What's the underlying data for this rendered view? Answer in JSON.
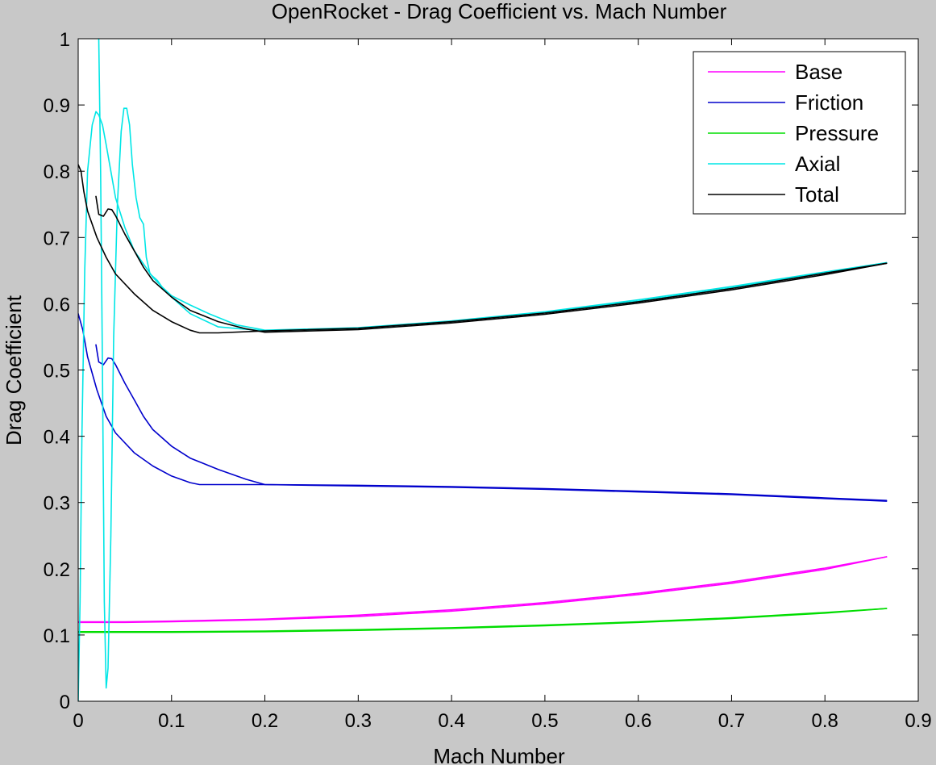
{
  "window": {
    "background": "#c8c8c8"
  },
  "chart_data": {
    "type": "line",
    "title": "OpenRocket - Drag Coefficient vs. Mach Number",
    "xlabel": "Mach Number",
    "ylabel": "Drag Coefficient",
    "xlim": [
      0,
      0.9
    ],
    "ylim": [
      0,
      1
    ],
    "xticks": [
      0,
      0.1,
      0.2,
      0.3,
      0.4,
      0.5,
      0.6,
      0.7,
      0.8,
      0.9
    ],
    "xtick_labels": [
      "0",
      "0.1",
      "0.2",
      "0.3",
      "0.4",
      "0.5",
      "0.6",
      "0.7",
      "0.8",
      "0.9"
    ],
    "yticks": [
      0,
      0.1,
      0.2,
      0.3,
      0.4,
      0.5,
      0.6,
      0.7,
      0.8,
      0.9,
      1
    ],
    "ytick_labels": [
      "0",
      "0.1",
      "0.2",
      "0.3",
      "0.4",
      "0.5",
      "0.6",
      "0.7",
      "0.8",
      "0.9",
      "1"
    ],
    "grid": false,
    "legend": {
      "placement": "top-right"
    },
    "series": [
      {
        "name": "Base",
        "color": "#ff00ff",
        "segments": [
          [
            [
              0.0,
              0.12
            ],
            [
              0.05,
              0.12
            ],
            [
              0.1,
              0.121
            ],
            [
              0.2,
              0.124
            ],
            [
              0.3,
              0.13
            ],
            [
              0.4,
              0.138
            ],
            [
              0.5,
              0.149
            ],
            [
              0.6,
              0.163
            ],
            [
              0.7,
              0.18
            ],
            [
              0.8,
              0.201
            ],
            [
              0.866,
              0.218
            ]
          ],
          [
            [
              0.866,
              0.218
            ],
            [
              0.8,
              0.199
            ],
            [
              0.7,
              0.178
            ],
            [
              0.6,
              0.161
            ],
            [
              0.5,
              0.147
            ],
            [
              0.4,
              0.136
            ],
            [
              0.3,
              0.128
            ],
            [
              0.2,
              0.123
            ],
            [
              0.1,
              0.12
            ],
            [
              0.05,
              0.119
            ],
            [
              0.0,
              0.119
            ]
          ]
        ]
      },
      {
        "name": "Friction",
        "color": "#0000cc",
        "segments": [
          [
            [
              0.0,
              0.585
            ],
            [
              0.005,
              0.56
            ],
            [
              0.01,
              0.52
            ],
            [
              0.02,
              0.47
            ],
            [
              0.03,
              0.43
            ],
            [
              0.04,
              0.405
            ],
            [
              0.06,
              0.375
            ],
            [
              0.08,
              0.355
            ],
            [
              0.1,
              0.34
            ],
            [
              0.12,
              0.33
            ],
            [
              0.13,
              0.327
            ],
            [
              0.2,
              0.327
            ],
            [
              0.3,
              0.326
            ],
            [
              0.4,
              0.324
            ],
            [
              0.5,
              0.321
            ],
            [
              0.6,
              0.317
            ],
            [
              0.7,
              0.313
            ],
            [
              0.8,
              0.307
            ],
            [
              0.866,
              0.303
            ]
          ],
          [
            [
              0.019,
              0.538
            ],
            [
              0.022,
              0.512
            ],
            [
              0.027,
              0.508
            ],
            [
              0.032,
              0.518
            ],
            [
              0.036,
              0.517
            ],
            [
              0.04,
              0.508
            ],
            [
              0.05,
              0.48
            ],
            [
              0.06,
              0.455
            ],
            [
              0.07,
              0.43
            ],
            [
              0.08,
              0.41
            ],
            [
              0.1,
              0.385
            ],
            [
              0.12,
              0.367
            ],
            [
              0.15,
              0.35
            ],
            [
              0.18,
              0.335
            ],
            [
              0.2,
              0.327
            ],
            [
              0.3,
              0.325
            ],
            [
              0.4,
              0.323
            ],
            [
              0.5,
              0.32
            ],
            [
              0.6,
              0.316
            ],
            [
              0.7,
              0.312
            ],
            [
              0.8,
              0.306
            ],
            [
              0.866,
              0.302
            ]
          ]
        ]
      },
      {
        "name": "Pressure",
        "color": "#00dd00",
        "segments": [
          [
            [
              0.0,
              0.105
            ],
            [
              0.1,
              0.105
            ],
            [
              0.2,
              0.106
            ],
            [
              0.3,
              0.108
            ],
            [
              0.4,
              0.111
            ],
            [
              0.5,
              0.115
            ],
            [
              0.6,
              0.12
            ],
            [
              0.7,
              0.126
            ],
            [
              0.8,
              0.134
            ],
            [
              0.866,
              0.14
            ]
          ],
          [
            [
              0.866,
              0.14
            ],
            [
              0.8,
              0.133
            ],
            [
              0.7,
              0.125
            ],
            [
              0.6,
              0.119
            ],
            [
              0.5,
              0.114
            ],
            [
              0.4,
              0.11
            ],
            [
              0.3,
              0.107
            ],
            [
              0.2,
              0.105
            ],
            [
              0.1,
              0.104
            ],
            [
              0.0,
              0.104
            ]
          ]
        ]
      },
      {
        "name": "Axial",
        "color": "#00e6e6",
        "segments": [
          [
            [
              0.0,
              0.0
            ],
            [
              0.002,
              0.15
            ],
            [
              0.004,
              0.4
            ],
            [
              0.007,
              0.65
            ],
            [
              0.01,
              0.8
            ],
            [
              0.015,
              0.87
            ],
            [
              0.019,
              0.89
            ],
            [
              0.022,
              0.885
            ],
            [
              0.026,
              0.87
            ],
            [
              0.03,
              0.84
            ],
            [
              0.035,
              0.8
            ],
            [
              0.04,
              0.76
            ],
            [
              0.05,
              0.715
            ],
            [
              0.06,
              0.68
            ],
            [
              0.08,
              0.64
            ],
            [
              0.1,
              0.61
            ],
            [
              0.12,
              0.585
            ],
            [
              0.15,
              0.565
            ],
            [
              0.2,
              0.559
            ],
            [
              0.3,
              0.563
            ],
            [
              0.4,
              0.573
            ],
            [
              0.5,
              0.587
            ],
            [
              0.6,
              0.604
            ],
            [
              0.7,
              0.624
            ],
            [
              0.8,
              0.647
            ],
            [
              0.866,
              0.662
            ]
          ],
          [
            [
              0.022,
              1.0
            ],
            [
              0.024,
              0.8
            ],
            [
              0.026,
              0.5
            ],
            [
              0.028,
              0.15
            ],
            [
              0.03,
              0.02
            ],
            [
              0.032,
              0.05
            ],
            [
              0.035,
              0.25
            ],
            [
              0.038,
              0.55
            ],
            [
              0.042,
              0.75
            ],
            [
              0.046,
              0.86
            ],
            [
              0.049,
              0.895
            ],
            [
              0.052,
              0.895
            ],
            [
              0.055,
              0.87
            ],
            [
              0.058,
              0.81
            ],
            [
              0.062,
              0.76
            ],
            [
              0.066,
              0.73
            ],
            [
              0.07,
              0.72
            ],
            [
              0.073,
              0.67
            ],
            [
              0.077,
              0.645
            ],
            [
              0.085,
              0.635
            ],
            [
              0.09,
              0.625
            ],
            [
              0.1,
              0.612
            ],
            [
              0.12,
              0.598
            ],
            [
              0.14,
              0.585
            ],
            [
              0.17,
              0.568
            ],
            [
              0.2,
              0.56
            ],
            [
              0.3,
              0.564
            ],
            [
              0.4,
              0.574
            ],
            [
              0.5,
              0.588
            ],
            [
              0.6,
              0.606
            ],
            [
              0.7,
              0.626
            ],
            [
              0.8,
              0.648
            ],
            [
              0.866,
              0.662
            ]
          ]
        ]
      },
      {
        "name": "Total",
        "color": "#000000",
        "segments": [
          [
            [
              0.0,
              0.81
            ],
            [
              0.003,
              0.8
            ],
            [
              0.006,
              0.77
            ],
            [
              0.01,
              0.74
            ],
            [
              0.02,
              0.7
            ],
            [
              0.03,
              0.67
            ],
            [
              0.04,
              0.645
            ],
            [
              0.06,
              0.615
            ],
            [
              0.08,
              0.59
            ],
            [
              0.1,
              0.573
            ],
            [
              0.12,
              0.56
            ],
            [
              0.13,
              0.556
            ],
            [
              0.15,
              0.556
            ],
            [
              0.2,
              0.559
            ],
            [
              0.3,
              0.563
            ],
            [
              0.4,
              0.573
            ],
            [
              0.5,
              0.586
            ],
            [
              0.6,
              0.603
            ],
            [
              0.7,
              0.623
            ],
            [
              0.8,
              0.646
            ],
            [
              0.866,
              0.661
            ]
          ],
          [
            [
              0.019,
              0.762
            ],
            [
              0.022,
              0.735
            ],
            [
              0.027,
              0.732
            ],
            [
              0.032,
              0.743
            ],
            [
              0.036,
              0.742
            ],
            [
              0.04,
              0.733
            ],
            [
              0.05,
              0.705
            ],
            [
              0.06,
              0.68
            ],
            [
              0.07,
              0.655
            ],
            [
              0.08,
              0.635
            ],
            [
              0.1,
              0.61
            ],
            [
              0.12,
              0.59
            ],
            [
              0.15,
              0.573
            ],
            [
              0.18,
              0.562
            ],
            [
              0.2,
              0.557
            ],
            [
              0.3,
              0.561
            ],
            [
              0.4,
              0.571
            ],
            [
              0.5,
              0.584
            ],
            [
              0.6,
              0.601
            ],
            [
              0.7,
              0.621
            ],
            [
              0.8,
              0.644
            ],
            [
              0.866,
              0.661
            ]
          ]
        ]
      }
    ]
  }
}
